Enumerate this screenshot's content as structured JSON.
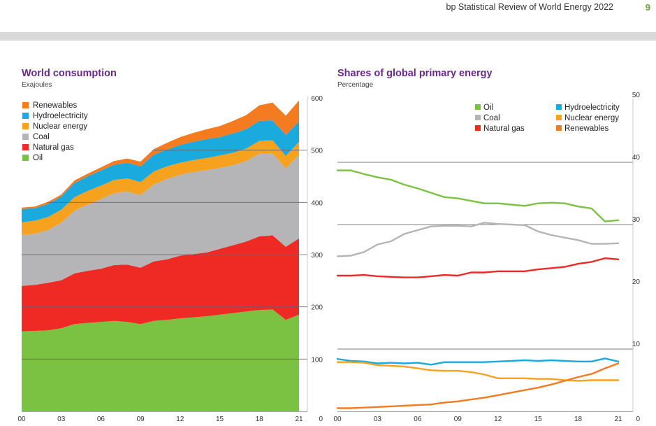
{
  "header": {
    "doc_title": "bp Statistical Review of World Energy 2022",
    "page_number": "9",
    "band_color": "#d9d9d9"
  },
  "chart_data": [
    {
      "type": "area",
      "stacked": true,
      "title": "World consumption",
      "subtitle": "Exajoules",
      "x": [
        2000,
        2001,
        2002,
        2003,
        2004,
        2005,
        2006,
        2007,
        2008,
        2009,
        2010,
        2011,
        2012,
        2013,
        2014,
        2015,
        2016,
        2017,
        2018,
        2019,
        2020,
        2021
      ],
      "x_ticks": [
        "00",
        "03",
        "06",
        "09",
        "12",
        "15",
        "18",
        "21"
      ],
      "y_ticks": [
        "0",
        "100",
        "200",
        "300",
        "400",
        "500",
        "600"
      ],
      "ylim": [
        0,
        600
      ],
      "y_axis_side": "right",
      "gridlines": [
        100,
        200,
        300,
        400,
        500
      ],
      "legend_position": "top-left",
      "series": [
        {
          "name": "Oil",
          "color": "#7cc242",
          "values": [
            153,
            154,
            155,
            159,
            167,
            169,
            171,
            173,
            171,
            167,
            173,
            175,
            178,
            180,
            182,
            185,
            188,
            191,
            194,
            195,
            175,
            185
          ]
        },
        {
          "name": "Natural gas",
          "color": "#ef2a24",
          "values": [
            87,
            88,
            91,
            92,
            97,
            100,
            102,
            107,
            110,
            108,
            114,
            116,
            120,
            121,
            122,
            126,
            130,
            134,
            141,
            142,
            140,
            146
          ]
        },
        {
          "name": "Coal",
          "color": "#b5b5b7",
          "values": [
            98,
            98,
            101,
            110,
            120,
            127,
            133,
            138,
            140,
            139,
            147,
            154,
            155,
            157,
            158,
            155,
            153,
            154,
            158,
            157,
            150,
            160
          ]
        },
        {
          "name": "Nuclear energy",
          "color": "#f6a21e",
          "values": [
            24,
            25,
            25,
            25,
            26,
            26,
            26,
            25,
            25,
            25,
            25,
            24,
            23,
            23,
            23,
            24,
            24,
            24,
            25,
            25,
            24,
            25
          ]
        },
        {
          "name": "Hydroelectricity",
          "color": "#1aaade",
          "values": [
            25,
            24,
            25,
            25,
            27,
            28,
            29,
            29,
            30,
            30,
            32,
            32,
            34,
            35,
            36,
            35,
            37,
            37,
            38,
            38,
            40,
            39
          ]
        },
        {
          "name": "Renewables",
          "color": "#f47b20",
          "values": [
            3,
            3,
            4,
            4,
            5,
            5,
            6,
            7,
            8,
            9,
            11,
            13,
            15,
            17,
            19,
            21,
            24,
            27,
            30,
            34,
            37,
            40
          ]
        }
      ]
    },
    {
      "type": "line",
      "title": "Shares of global primary energy",
      "subtitle": "Percentage",
      "x": [
        2000,
        2001,
        2002,
        2003,
        2004,
        2005,
        2006,
        2007,
        2008,
        2009,
        2010,
        2011,
        2012,
        2013,
        2014,
        2015,
        2016,
        2017,
        2018,
        2019,
        2020,
        2021
      ],
      "x_ticks": [
        "00",
        "03",
        "06",
        "09",
        "12",
        "15",
        "18",
        "21"
      ],
      "y_ticks": [
        "0",
        "10",
        "20",
        "30",
        "40",
        "50"
      ],
      "ylim": [
        0,
        50
      ],
      "y_axis_side": "right",
      "gridlines": [
        10,
        30,
        40
      ],
      "legend_position": "top-right",
      "series": [
        {
          "name": "Oil",
          "color": "#7cc242",
          "values": [
            38.7,
            38.7,
            38.1,
            37.6,
            37.2,
            36.4,
            35.8,
            35.1,
            34.4,
            34.2,
            33.8,
            33.4,
            33.4,
            33.2,
            33.0,
            33.4,
            33.5,
            33.4,
            32.9,
            32.6,
            30.5,
            30.7
          ]
        },
        {
          "name": "Coal",
          "color": "#b5b5b7",
          "values": [
            24.9,
            25.0,
            25.6,
            26.8,
            27.3,
            28.5,
            29.1,
            29.7,
            29.8,
            29.8,
            29.7,
            30.3,
            30.1,
            30.0,
            29.9,
            28.9,
            28.3,
            27.9,
            27.5,
            26.9,
            26.9,
            27.0
          ]
        },
        {
          "name": "Natural gas",
          "color": "#ef2a24",
          "values": [
            21.8,
            21.8,
            21.9,
            21.7,
            21.6,
            21.5,
            21.5,
            21.7,
            21.9,
            21.8,
            22.3,
            22.3,
            22.5,
            22.5,
            22.5,
            22.8,
            23.0,
            23.2,
            23.7,
            24.0,
            24.6,
            24.4
          ]
        },
        {
          "name": "Hydroelectricity",
          "color": "#1aaade",
          "values": [
            8.4,
            8.1,
            8.0,
            7.7,
            7.8,
            7.7,
            7.8,
            7.5,
            7.9,
            7.9,
            7.9,
            7.9,
            8.0,
            8.1,
            8.2,
            8.1,
            8.2,
            8.1,
            8.0,
            8.0,
            8.5,
            8.0
          ]
        },
        {
          "name": "Nuclear energy",
          "color": "#f6a21e",
          "values": [
            7.9,
            7.9,
            7.8,
            7.4,
            7.3,
            7.2,
            6.9,
            6.6,
            6.5,
            6.5,
            6.3,
            5.9,
            5.3,
            5.3,
            5.3,
            5.2,
            5.2,
            5.0,
            4.9,
            5.0,
            5.0,
            5.0
          ]
        },
        {
          "name": "Renewables",
          "color": "#f47b20",
          "values": [
            0.5,
            0.5,
            0.6,
            0.7,
            0.8,
            0.9,
            1.0,
            1.1,
            1.4,
            1.6,
            1.9,
            2.2,
            2.6,
            3.0,
            3.4,
            3.8,
            4.3,
            4.9,
            5.5,
            6.0,
            6.9,
            7.7
          ]
        }
      ]
    }
  ]
}
